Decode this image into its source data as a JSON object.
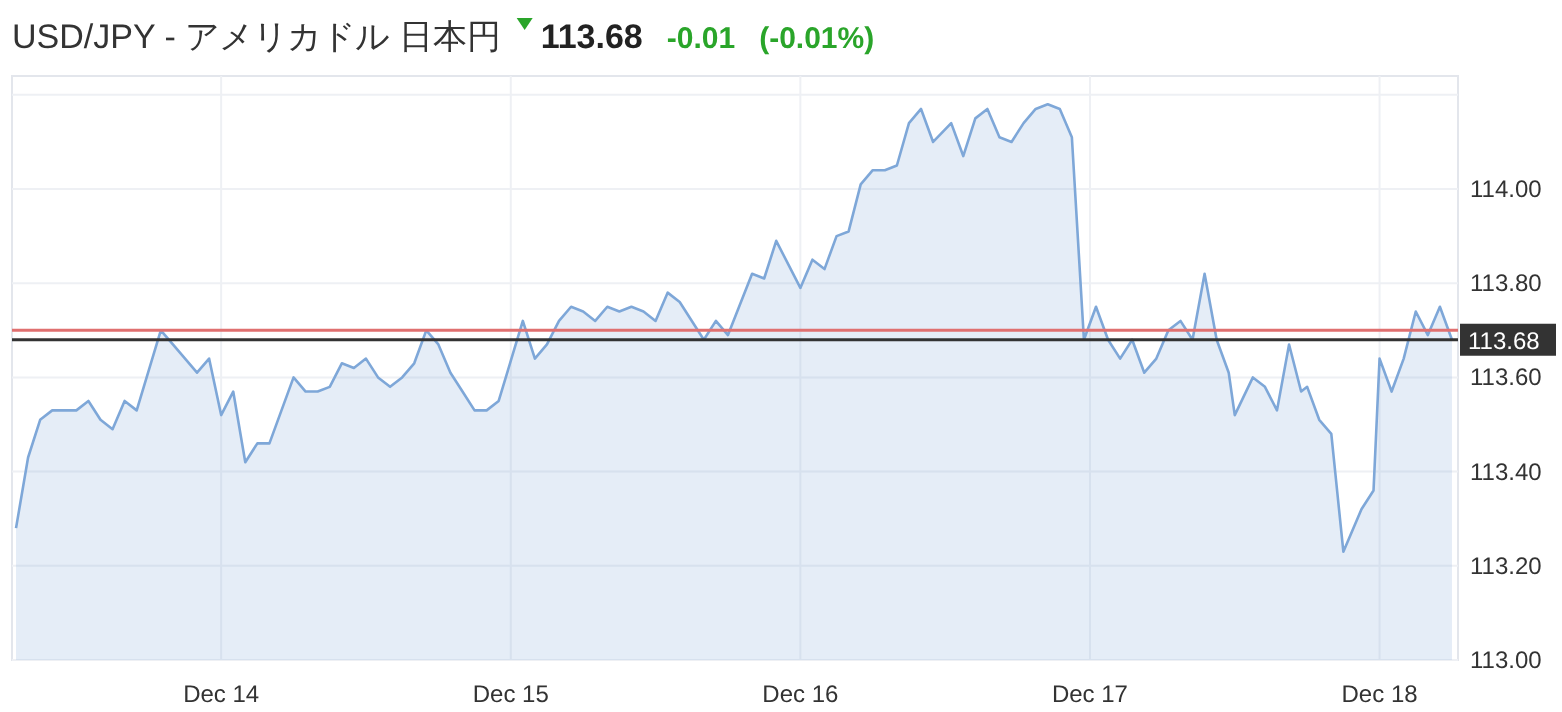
{
  "chart_data": {
    "type": "area",
    "title": "USD/JPY - アメリカドル 日本円",
    "annotations": [
      "113.68",
      "-0.01",
      "(-0.01%)"
    ],
    "x": [
      "--12-13T07:00",
      "--12-13T08:00",
      "--12-13T09:00",
      "--12-13T10:00",
      "--12-13T12:00",
      "--12-13T13:00",
      "--12-13T14:00",
      "--12-13T15:00",
      "--12-13T16:00",
      "--12-13T17:00",
      "--12-13T19:00",
      "--12-13T20:00",
      "--12-13T22:00",
      "--12-13T23:00",
      "--12-14T00:00",
      "--12-14T01:00",
      "--12-14T02:00",
      "--12-14T03:00",
      "--12-14T04:00",
      "--12-14T06:00",
      "--12-14T07:00",
      "--12-14T08:00",
      "--12-14T09:00",
      "--12-14T10:00",
      "--12-14T11:00",
      "--12-14T12:00",
      "--12-14T13:00",
      "--12-14T14:00",
      "--12-14T15:00",
      "--12-14T16:00",
      "--12-14T17:00",
      "--12-14T18:00",
      "--12-14T19:00",
      "--12-14T20:00",
      "--12-14T21:00",
      "--12-14T22:00",
      "--12-14T23:00",
      "--12-15T01:00",
      "--12-15T02:00",
      "--12-15T03:00",
      "--12-15T04:00",
      "--12-15T05:00",
      "--12-15T06:00",
      "--12-15T07:00",
      "--12-15T08:00",
      "--12-15T09:00",
      "--12-15T10:00",
      "--12-15T11:00",
      "--12-15T12:00",
      "--12-15T13:00",
      "--12-15T14:00",
      "--12-15T16:00",
      "--12-15T17:00",
      "--12-15T18:00",
      "--12-15T20:00",
      "--12-15T21:00",
      "--12-15T22:00",
      "--12-15T23:00",
      "--12-16T00:00",
      "--12-16T01:00",
      "--12-16T02:00",
      "--12-16T03:00",
      "--12-16T04:00",
      "--12-16T05:00",
      "--12-16T06:00",
      "--12-16T07:00",
      "--12-16T08:00",
      "--12-16T09:00",
      "--12-16T10:00",
      "--12-16T11:00",
      "--12-16T12:30",
      "--12-16T13:30",
      "--12-16T14:30",
      "--12-16T15:30",
      "--12-16T16:30",
      "--12-16T17:30",
      "--12-16T18:30",
      "--12-16T19:30",
      "--12-16T20:30",
      "--12-16T21:30",
      "--12-16T22:30",
      "--12-16T23:30",
      "--12-17T00:30",
      "--12-17T01:30",
      "--12-17T02:30",
      "--12-17T03:30",
      "--12-17T04:30",
      "--12-17T05:30",
      "--12-17T06:30",
      "--12-17T07:30",
      "--12-17T08:30",
      "--12-17T09:30",
      "--12-17T10:30",
      "--12-17T11:30",
      "--12-17T12:00",
      "--12-17T13:30",
      "--12-17T14:30",
      "--12-17T15:30",
      "--12-17T16:30",
      "--12-17T17:30",
      "--12-17T18:00",
      "--12-17T19:00",
      "--12-17T20:00",
      "--12-17T21:00",
      "--12-17T22:30",
      "--12-17T23:30",
      "--12-18T00:00",
      "--12-18T01:00",
      "--12-18T02:00",
      "--12-18T03:00",
      "--12-18T04:00",
      "--12-18T05:00",
      "--12-18T06:00"
    ],
    "series": [
      {
        "color": "#7ea7d8",
        "values": [
          113.28,
          113.43,
          113.51,
          113.53,
          113.53,
          113.55,
          113.51,
          113.49,
          113.55,
          113.53,
          113.7,
          113.67,
          113.61,
          113.64,
          113.52,
          113.57,
          113.42,
          113.46,
          113.46,
          113.6,
          113.57,
          113.57,
          113.58,
          113.63,
          113.62,
          113.64,
          113.6,
          113.58,
          113.6,
          113.63,
          113.7,
          113.67,
          113.61,
          113.57,
          113.53,
          113.53,
          113.55,
          113.72,
          113.64,
          113.67,
          113.72,
          113.75,
          113.74,
          113.72,
          113.75,
          113.74,
          113.75,
          113.74,
          113.72,
          113.78,
          113.76,
          113.68,
          113.72,
          113.69,
          113.82,
          113.81,
          113.89,
          113.84,
          113.79,
          113.85,
          113.83,
          113.9,
          113.91,
          114.01,
          114.04,
          114.04,
          114.05,
          114.14,
          114.17,
          114.1,
          114.14,
          114.07,
          114.15,
          114.17,
          114.11,
          114.1,
          114.14,
          114.17,
          114.18,
          114.17,
          114.11,
          113.68,
          113.75,
          113.68,
          113.64,
          113.68,
          113.61,
          113.64,
          113.7,
          113.72,
          113.68,
          113.82,
          113.68,
          113.61,
          113.52,
          113.6,
          113.58,
          113.53,
          113.67,
          113.57,
          113.58,
          113.51,
          113.48,
          113.23,
          113.32,
          113.36,
          113.64,
          113.57,
          113.64,
          113.74,
          113.69,
          113.75,
          113.68
        ]
      }
    ],
    "xlim": [
      "--12-13T06:40",
      "--12-18T06:30"
    ],
    "xticks": [
      {
        "value": "--12-14",
        "label": "Dec 14"
      },
      {
        "value": "--12-15",
        "label": "Dec 15"
      },
      {
        "value": "--12-16",
        "label": "Dec 16"
      },
      {
        "value": "--12-17",
        "label": "Dec 17"
      },
      {
        "value": "--12-18",
        "label": "Dec 18"
      }
    ],
    "ylim": [
      113.0,
      114.24
    ],
    "yticks": [
      {
        "value": 113.0,
        "label": "113.00"
      },
      {
        "value": 113.2,
        "label": "113.20"
      },
      {
        "value": 113.4,
        "label": "113.40"
      },
      {
        "value": 113.6,
        "label": "113.60"
      },
      {
        "value": 113.8,
        "label": "113.80"
      },
      {
        "value": 114.0,
        "label": "114.00"
      },
      {
        "value": 114.2,
        "label": null
      }
    ],
    "grid": true,
    "ref_lines": [
      {
        "axis": "y",
        "value": 113.7,
        "color": "#e07070"
      },
      {
        "axis": "y",
        "value": 113.68,
        "label": "113.68",
        "color": "#333333"
      }
    ]
  }
}
